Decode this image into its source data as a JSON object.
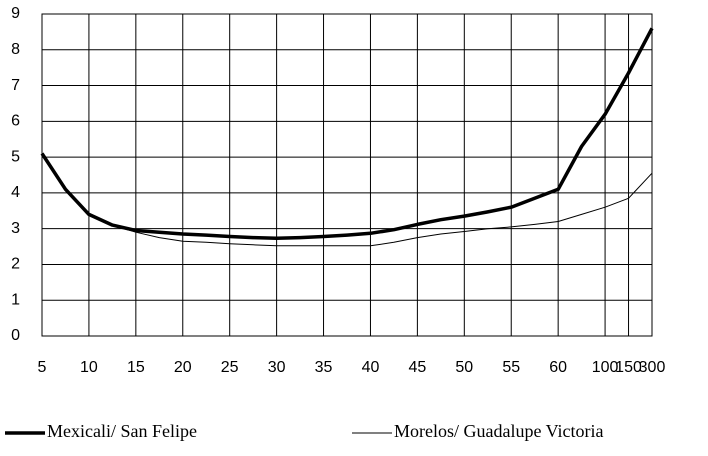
{
  "chart_data": {
    "type": "line",
    "categories": [
      "5",
      null,
      "10",
      null,
      "15",
      null,
      "20",
      null,
      "25",
      null,
      "30",
      null,
      "35",
      null,
      "40",
      null,
      "45",
      null,
      "50",
      null,
      "55",
      null,
      "60",
      null,
      "100",
      "150",
      "300"
    ],
    "series": [
      {
        "name": "Mexicali/ San Felipe",
        "color": "#000000",
        "values": [
          5.1,
          4.1,
          3.4,
          3.1,
          2.95,
          2.9,
          2.85,
          2.82,
          2.78,
          2.75,
          2.73,
          2.75,
          2.78,
          2.82,
          2.87,
          2.97,
          3.12,
          3.25,
          3.35,
          3.47,
          3.6,
          3.85,
          4.1,
          5.3,
          6.2,
          7.35,
          8.6
        ]
      },
      {
        "name": "Morelos/ Guadalupe Victoria",
        "color": "#000000",
        "values": [
          5.1,
          4.1,
          3.4,
          3.1,
          2.9,
          2.75,
          2.65,
          2.62,
          2.58,
          2.55,
          2.52,
          2.52,
          2.52,
          2.52,
          2.52,
          2.62,
          2.75,
          2.85,
          2.92,
          3.0,
          3.05,
          3.12,
          3.2,
          3.4,
          3.6,
          3.85,
          4.55
        ]
      }
    ],
    "ylim": [
      0,
      9
    ],
    "yticks": [
      0,
      1,
      2,
      3,
      4,
      5,
      6,
      7,
      8,
      9
    ],
    "grid": true
  }
}
